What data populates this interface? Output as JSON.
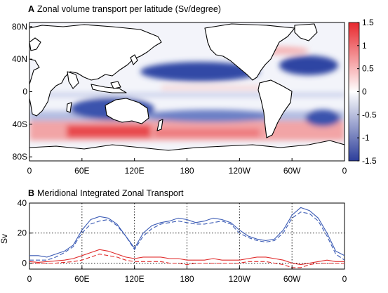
{
  "chart_data": [
    {
      "type": "heatmap",
      "panel_letter": "A",
      "title": "Zonal volume transport per latitude (Sv/degree)",
      "x_ticks": [
        "0",
        "60E",
        "120E",
        "180",
        "120W",
        "60W",
        "0"
      ],
      "y_ticks": [
        "80N",
        "40N",
        "0",
        "40S",
        "80S"
      ],
      "y_tick_values": [
        80,
        40,
        0,
        -40,
        -80
      ],
      "xlim": [
        0,
        360
      ],
      "ylim": [
        -85,
        85
      ],
      "colorbar": {
        "ticks": [
          "1.5",
          "1",
          "0.5",
          "0",
          "-0.5",
          "-1",
          "-1.5"
        ],
        "range": [
          -1.5,
          1.5
        ],
        "colors": [
          "#2c3d9a",
          "#ffffff",
          "#e8282e"
        ]
      },
      "features": [
        {
          "lon": [
            0,
            360
          ],
          "lat": [
            -60,
            -45
          ],
          "value": 1.0
        },
        {
          "lon": [
            125,
            295
          ],
          "lat": [
            -38,
            -28
          ],
          "value": -0.8
        },
        {
          "lon": [
            130,
            250
          ],
          "lat": [
            20,
            40
          ],
          "value": -1.2
        },
        {
          "lon": [
            280,
            345
          ],
          "lat": [
            20,
            45
          ],
          "value": -1.3
        },
        {
          "lon": [
            55,
            115
          ],
          "lat": [
            -40,
            -25
          ],
          "value": -1.1
        },
        {
          "lon": [
            120,
            290
          ],
          "lat": [
            0,
            10
          ],
          "value": 0.3
        }
      ]
    },
    {
      "type": "line",
      "panel_letter": "B",
      "title": "Meridional Integrated Zonal Transport",
      "ylabel": "Sv",
      "x_ticks": [
        "0",
        "60E",
        "120E",
        "180",
        "120W",
        "60W",
        "0"
      ],
      "y_ticks": [
        "40",
        "20",
        "0"
      ],
      "xlim": [
        0,
        360
      ],
      "ylim": [
        -4,
        40
      ],
      "grid": "dotted",
      "x": [
        0,
        10,
        20,
        30,
        40,
        50,
        60,
        70,
        80,
        90,
        100,
        110,
        120,
        130,
        140,
        150,
        160,
        170,
        180,
        190,
        200,
        210,
        220,
        230,
        240,
        250,
        260,
        270,
        280,
        290,
        300,
        310,
        320,
        330,
        340,
        350,
        360
      ],
      "series": [
        {
          "color": "#3b5bb5",
          "dash": "solid",
          "values": [
            5,
            5,
            4,
            6,
            8,
            12,
            22,
            29,
            31,
            30,
            26,
            18,
            10,
            20,
            25,
            27,
            28,
            30,
            29,
            27,
            28,
            30,
            29,
            27,
            22,
            18,
            16,
            15,
            16,
            22,
            32,
            37,
            35,
            30,
            20,
            8,
            5
          ]
        },
        {
          "color": "#3b5bb5",
          "dash": "dashed",
          "values": [
            2,
            2,
            2,
            4,
            7,
            11,
            20,
            26,
            28,
            29,
            25,
            18,
            9,
            18,
            23,
            26,
            27,
            28,
            27,
            26,
            26,
            27,
            28,
            26,
            20,
            17,
            15,
            14,
            15,
            20,
            30,
            34,
            33,
            28,
            18,
            6,
            2
          ]
        },
        {
          "color": "#e02a2a",
          "dash": "solid",
          "values": [
            1,
            0.5,
            1,
            1.5,
            2,
            3,
            5,
            7,
            9,
            8,
            6,
            4,
            3,
            4,
            4,
            4,
            3,
            3,
            2,
            2,
            2,
            3,
            2,
            2,
            2,
            3,
            4,
            4,
            3,
            2,
            0,
            -1,
            0,
            1,
            2,
            1,
            1
          ]
        },
        {
          "color": "#e02a2a",
          "dash": "dashed",
          "values": [
            0,
            0,
            0,
            0,
            0.5,
            1,
            2,
            4,
            6,
            5,
            4,
            2,
            1,
            1,
            1,
            1,
            0,
            0,
            -1,
            0,
            0,
            0,
            0,
            0,
            0,
            1,
            1,
            1,
            0,
            -1,
            -3,
            -3,
            -1,
            0,
            0,
            0,
            0
          ]
        }
      ]
    }
  ]
}
